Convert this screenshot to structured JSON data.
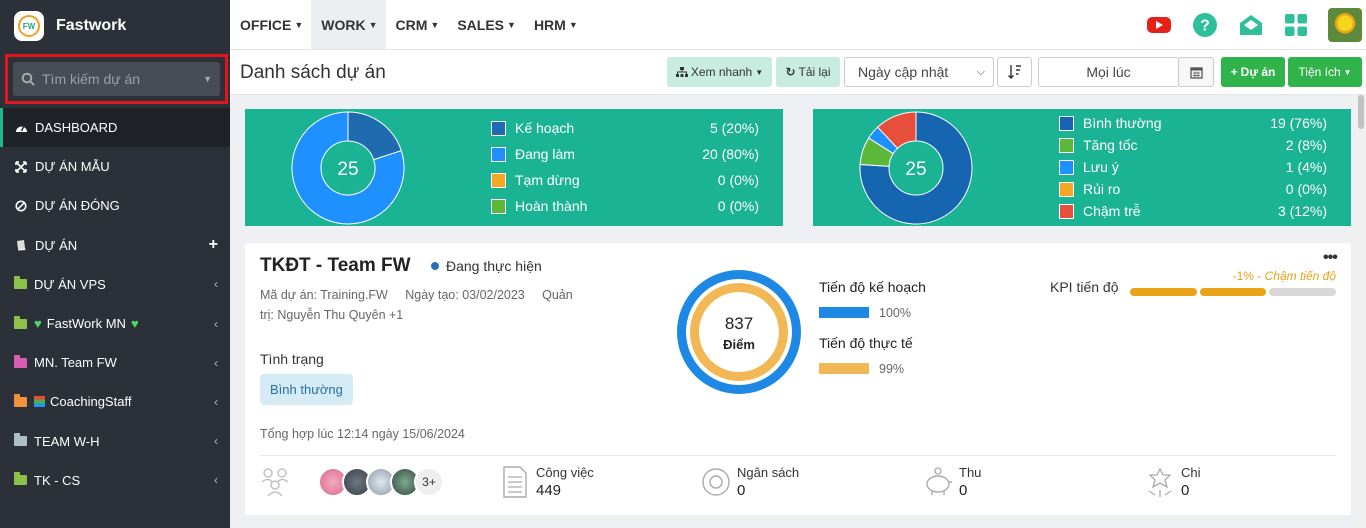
{
  "sidebar": {
    "brand": "Fastwork",
    "logo_text": "FW",
    "search_placeholder": "Tìm kiếm dự án",
    "items": [
      {
        "label": "DASHBOARD",
        "icon": "dashboard-icon"
      },
      {
        "label": "DỰ ÁN MẪU",
        "icon": "expand-icon"
      },
      {
        "label": "DỰ ÁN ĐÓNG",
        "icon": "ban-icon"
      },
      {
        "label": "DỰ ÁN",
        "icon": "book-icon",
        "action": "+"
      },
      {
        "label": "DỰ ÁN VPS",
        "icon": "folder-icon",
        "color": "#8bc34a"
      },
      {
        "label": "FastWork MN",
        "icon": "folder-icon",
        "color": "#8bc34a",
        "emoji": "💚"
      },
      {
        "label": "MN. Team FW",
        "icon": "folder-icon",
        "color": "#d65db1"
      },
      {
        "label": "CoachingStaff",
        "icon": "folder-icon",
        "color": "#f0923b",
        "emoji": "📚"
      },
      {
        "label": "TEAM W-H",
        "icon": "folder-icon",
        "color": "#b0bec5"
      },
      {
        "label": "TK - CS",
        "icon": "folder-icon",
        "color": "#8bc34a"
      }
    ]
  },
  "topnav": {
    "menus": [
      "OFFICE",
      "WORK",
      "CRM",
      "SALES",
      "HRM"
    ],
    "active": "WORK",
    "icons": [
      "youtube-icon",
      "help-icon",
      "mail-open-icon",
      "apps-grid-icon",
      "user-avatar"
    ]
  },
  "header": {
    "title": "Danh sách dự án",
    "quick_view": "Xem nhanh",
    "reload": "Tải lại",
    "sort_select": "Ngày cập nhật",
    "time_input": "Mọi lúc",
    "add_project": "Dự án",
    "utilities": "Tiện ích"
  },
  "stats_status": {
    "total": "25",
    "items": [
      {
        "label": "Kế hoạch",
        "value": "5 (20%)",
        "color": "#1f6bb0"
      },
      {
        "label": "Đang làm",
        "value": "20 (80%)",
        "color": "#1e90ff"
      },
      {
        "label": "Tạm dừng",
        "value": "0 (0%)",
        "color": "#f5a623"
      },
      {
        "label": "Hoàn thành",
        "value": "0 (0%)",
        "color": "#5cb83a"
      }
    ]
  },
  "stats_health": {
    "total": "25",
    "items": [
      {
        "label": "Bình thường",
        "value": "19 (76%)",
        "color": "#1565b0"
      },
      {
        "label": "Tăng tốc",
        "value": "2 (8%)",
        "color": "#5cb83a"
      },
      {
        "label": "Lưu ý",
        "value": "1 (4%)",
        "color": "#1e90ff"
      },
      {
        "label": "Rủi ro",
        "value": "0 (0%)",
        "color": "#f5a623"
      },
      {
        "label": "Chậm trễ",
        "value": "3 (12%)",
        "color": "#e84e3c"
      }
    ]
  },
  "project": {
    "title": "TKĐT - Team FW",
    "status": "Đang thực hiện",
    "meta_line1": "Mã dự án: Training.FW     Ngày tạo: 03/02/2023     Quản",
    "meta_line2": "trị: Nguyễn Thu Quyên +1",
    "state_label": "Tình trạng",
    "state_value": "Bình thường",
    "summary": "Tổng hợp lúc 12:14 ngày 15/06/2024",
    "score": "837",
    "score_label": "Điểm",
    "plan_label": "Tiến độ kế hoạch",
    "plan_value": "100%",
    "plan_fraction": 1.0,
    "actual_label": "Tiến độ thực tế",
    "actual_value": "99%",
    "actual_fraction": 0.99,
    "kpi_label": "KPI tiến độ",
    "kpi_value": "-1%",
    "kpi_note": "Chậm tiến độ",
    "more_members": "3+",
    "footer": [
      {
        "label": "Công việc",
        "value": "449",
        "icon": "document-icon"
      },
      {
        "label": "Ngân sách",
        "value": "0",
        "icon": "lifebuoy-icon"
      },
      {
        "label": "Thu",
        "value": "0",
        "icon": "piggy-bank-icon"
      },
      {
        "label": "Chi",
        "value": "0",
        "icon": "money-scatter-icon"
      }
    ]
  }
}
